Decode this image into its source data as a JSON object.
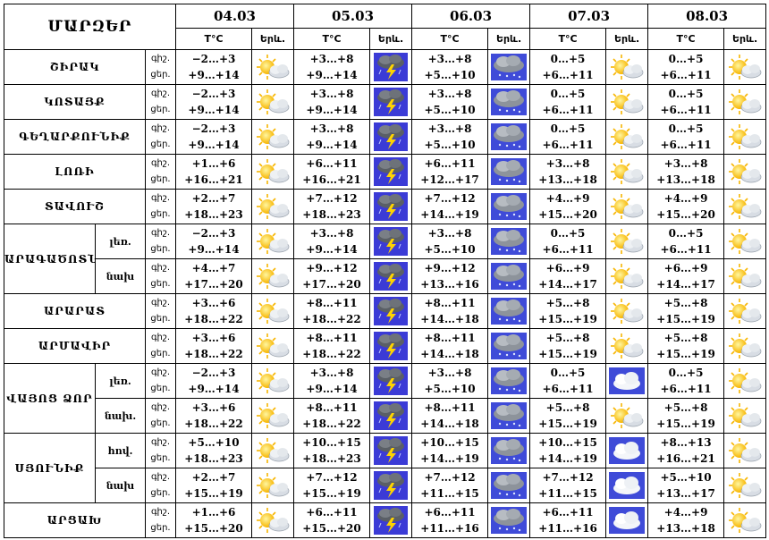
{
  "header": {
    "title": "ՄԱՐԶԵՐ",
    "temp_label": "T°C",
    "icon_label": "Երև.",
    "dates": [
      "04.03",
      "05.03",
      "06.03",
      "07.03",
      "08.03"
    ]
  },
  "icon_names": {
    "sun_cloud": "partly-cloudy-icon",
    "storm": "thunderstorm-icon",
    "rain_cloud": "rain-cloud-icon",
    "cloud": "cloud-icon"
  },
  "colors": {
    "storm_bg": "#3b3bd6",
    "cloud_bg": "#3f4bd8",
    "sun": "#f7b500",
    "cloud": "#d8dde4"
  },
  "rows": [
    {
      "region": "ՇԻՐԱԿ",
      "sub": "",
      "tod": [
        "գիշ.",
        "ցեր."
      ],
      "days": [
        {
          "n": "−2…+3",
          "d": "+9…+14",
          "i": "sun_cloud"
        },
        {
          "n": "+3…+8",
          "d": "+9…+14",
          "i": "storm"
        },
        {
          "n": "+3…+8",
          "d": "+5…+10",
          "i": "rain_cloud"
        },
        {
          "n": "0…+5",
          "d": "+6…+11",
          "i": "sun_cloud"
        },
        {
          "n": "0…+5",
          "d": "+6…+11",
          "i": "sun_cloud"
        }
      ]
    },
    {
      "region": "ԿՈՏԱՅՔ",
      "sub": "",
      "tod": [
        "գիշ.",
        "ցեր."
      ],
      "days": [
        {
          "n": "−2…+3",
          "d": "+9…+14",
          "i": "sun_cloud"
        },
        {
          "n": "+3…+8",
          "d": "+9…+14",
          "i": "storm"
        },
        {
          "n": "+3…+8",
          "d": "+5…+10",
          "i": "rain_cloud"
        },
        {
          "n": "0…+5",
          "d": "+6…+11",
          "i": "sun_cloud"
        },
        {
          "n": "0…+5",
          "d": "+6…+11",
          "i": "sun_cloud"
        }
      ]
    },
    {
      "region": "ԳԵՂԱՐՔՈՒՆԻՔ",
      "sub": "",
      "tod": [
        "գիշ.",
        "ցեր."
      ],
      "days": [
        {
          "n": "−2…+3",
          "d": "+9…+14",
          "i": "sun_cloud"
        },
        {
          "n": "+3…+8",
          "d": "+9…+14",
          "i": "storm"
        },
        {
          "n": "+3…+8",
          "d": "+5…+10",
          "i": "rain_cloud"
        },
        {
          "n": "0…+5",
          "d": "+6…+11",
          "i": "sun_cloud"
        },
        {
          "n": "0…+5",
          "d": "+6…+11",
          "i": "sun_cloud"
        }
      ]
    },
    {
      "region": "ԼՈՌԻ",
      "sub": "",
      "tod": [
        "գիշ.",
        "ցեր."
      ],
      "days": [
        {
          "n": "+1…+6",
          "d": "+16…+21",
          "i": "sun_cloud"
        },
        {
          "n": "+6…+11",
          "d": "+16…+21",
          "i": "storm"
        },
        {
          "n": "+6…+11",
          "d": "+12…+17",
          "i": "rain_cloud"
        },
        {
          "n": "+3…+8",
          "d": "+13…+18",
          "i": "sun_cloud"
        },
        {
          "n": "+3…+8",
          "d": "+13…+18",
          "i": "sun_cloud"
        }
      ]
    },
    {
      "region": "ՏԱՎՈՒՇ",
      "sub": "",
      "tod": [
        "գիշ.",
        "ցեր."
      ],
      "days": [
        {
          "n": "+2…+7",
          "d": "+18…+23",
          "i": "sun_cloud"
        },
        {
          "n": "+7…+12",
          "d": "+18…+23",
          "i": "storm"
        },
        {
          "n": "+7…+12",
          "d": "+14…+19",
          "i": "rain_cloud"
        },
        {
          "n": "+4…+9",
          "d": "+15…+20",
          "i": "sun_cloud"
        },
        {
          "n": "+4…+9",
          "d": "+15…+20",
          "i": "sun_cloud"
        }
      ]
    },
    {
      "region": "ԱՐԱԳԱԾՈՏՆ",
      "sub": "լեռ.",
      "tod": [
        "գիշ.",
        "ցեր."
      ],
      "days": [
        {
          "n": "−2…+3",
          "d": "+9…+14",
          "i": "sun_cloud"
        },
        {
          "n": "+3…+8",
          "d": "+9…+14",
          "i": "storm"
        },
        {
          "n": "+3…+8",
          "d": "+5…+10",
          "i": "rain_cloud"
        },
        {
          "n": "0…+5",
          "d": "+6…+11",
          "i": "sun_cloud"
        },
        {
          "n": "0…+5",
          "d": "+6…+11",
          "i": "sun_cloud"
        }
      ]
    },
    {
      "region": "",
      "sub": "նախ",
      "tod": [
        "գիշ.",
        "ցեր."
      ],
      "days": [
        {
          "n": "+4…+7",
          "d": "+17…+20",
          "i": "sun_cloud"
        },
        {
          "n": "+9…+12",
          "d": "+17…+20",
          "i": "storm"
        },
        {
          "n": "+9…+12",
          "d": "+13…+16",
          "i": "rain_cloud"
        },
        {
          "n": "+6…+9",
          "d": "+14…+17",
          "i": "sun_cloud"
        },
        {
          "n": "+6…+9",
          "d": "+14…+17",
          "i": "sun_cloud"
        }
      ]
    },
    {
      "region": "ԱՐԱՐԱՏ",
      "sub": "",
      "tod": [
        "գիշ.",
        "ցեր."
      ],
      "days": [
        {
          "n": "+3…+6",
          "d": "+18…+22",
          "i": "sun_cloud"
        },
        {
          "n": "+8…+11",
          "d": "+18…+22",
          "i": "storm"
        },
        {
          "n": "+8…+11",
          "d": "+14…+18",
          "i": "rain_cloud"
        },
        {
          "n": "+5…+8",
          "d": "+15…+19",
          "i": "sun_cloud"
        },
        {
          "n": "+5…+8",
          "d": "+15…+19",
          "i": "sun_cloud"
        }
      ]
    },
    {
      "region": "ԱՐՄԱՎԻՐ",
      "sub": "",
      "tod": [
        "գիշ.",
        "ցեր."
      ],
      "days": [
        {
          "n": "+3…+6",
          "d": "+18…+22",
          "i": "sun_cloud"
        },
        {
          "n": "+8…+11",
          "d": "+18…+22",
          "i": "storm"
        },
        {
          "n": "+8…+11",
          "d": "+14…+18",
          "i": "rain_cloud"
        },
        {
          "n": "+5…+8",
          "d": "+15…+19",
          "i": "sun_cloud"
        },
        {
          "n": "+5…+8",
          "d": "+15…+19",
          "i": "sun_cloud"
        }
      ]
    },
    {
      "region": "ՎԱՅՈՑ ՁՈՐ",
      "sub": "լեռ.",
      "tod": [
        "գիշ.",
        "ցեր."
      ],
      "days": [
        {
          "n": "−2…+3",
          "d": "+9…+14",
          "i": "sun_cloud"
        },
        {
          "n": "+3…+8",
          "d": "+9…+14",
          "i": "storm"
        },
        {
          "n": "+3…+8",
          "d": "+5…+10",
          "i": "rain_cloud"
        },
        {
          "n": "0…+5",
          "d": "+6…+11",
          "i": "cloud"
        },
        {
          "n": "0…+5",
          "d": "+6…+11",
          "i": "sun_cloud"
        }
      ]
    },
    {
      "region": "",
      "sub": "նախ.",
      "tod": [
        "գիշ.",
        "ցեր."
      ],
      "days": [
        {
          "n": "+3…+6",
          "d": "+18…+22",
          "i": "sun_cloud"
        },
        {
          "n": "+8…+11",
          "d": "+18…+22",
          "i": "storm"
        },
        {
          "n": "+8…+11",
          "d": "+14…+18",
          "i": "rain_cloud"
        },
        {
          "n": "+5…+8",
          "d": "+15…+19",
          "i": "sun_cloud"
        },
        {
          "n": "+5…+8",
          "d": "+15…+19",
          "i": "sun_cloud"
        }
      ]
    },
    {
      "region": "ՍՅՈՒՆԻՔ",
      "sub": "հով.",
      "tod": [
        "գիշ.",
        "ցեր."
      ],
      "days": [
        {
          "n": "+5…+10",
          "d": "+18…+23",
          "i": "sun_cloud"
        },
        {
          "n": "+10…+15",
          "d": "+18…+23",
          "i": "storm"
        },
        {
          "n": "+10…+15",
          "d": "+14…+19",
          "i": "rain_cloud"
        },
        {
          "n": "+10…+15",
          "d": "+14…+19",
          "i": "cloud"
        },
        {
          "n": "+8…+13",
          "d": "+16…+21",
          "i": "sun_cloud"
        }
      ]
    },
    {
      "region": "",
      "sub": "նախ",
      "tod": [
        "գիշ.",
        "ցեր."
      ],
      "days": [
        {
          "n": "+2…+7",
          "d": "+15…+19",
          "i": "sun_cloud"
        },
        {
          "n": "+7…+12",
          "d": "+15…+19",
          "i": "storm"
        },
        {
          "n": "+7…+12",
          "d": "+11…+15",
          "i": "rain_cloud"
        },
        {
          "n": "+7…+12",
          "d": "+11…+15",
          "i": "cloud"
        },
        {
          "n": "+5…+10",
          "d": "+13…+17",
          "i": "sun_cloud"
        }
      ]
    },
    {
      "region": "ԱՐՑԱԽ",
      "sub": "",
      "tod": [
        "գիշ.",
        "ցեր."
      ],
      "days": [
        {
          "n": "+1…+6",
          "d": "+15…+20",
          "i": "sun_cloud"
        },
        {
          "n": "+6…+11",
          "d": "+15…+20",
          "i": "storm"
        },
        {
          "n": "+6…+11",
          "d": "+11…+16",
          "i": "rain_cloud"
        },
        {
          "n": "+6…+11",
          "d": "+11…+16",
          "i": "cloud"
        },
        {
          "n": "+4…+9",
          "d": "+13…+18",
          "i": "sun_cloud"
        }
      ]
    }
  ]
}
